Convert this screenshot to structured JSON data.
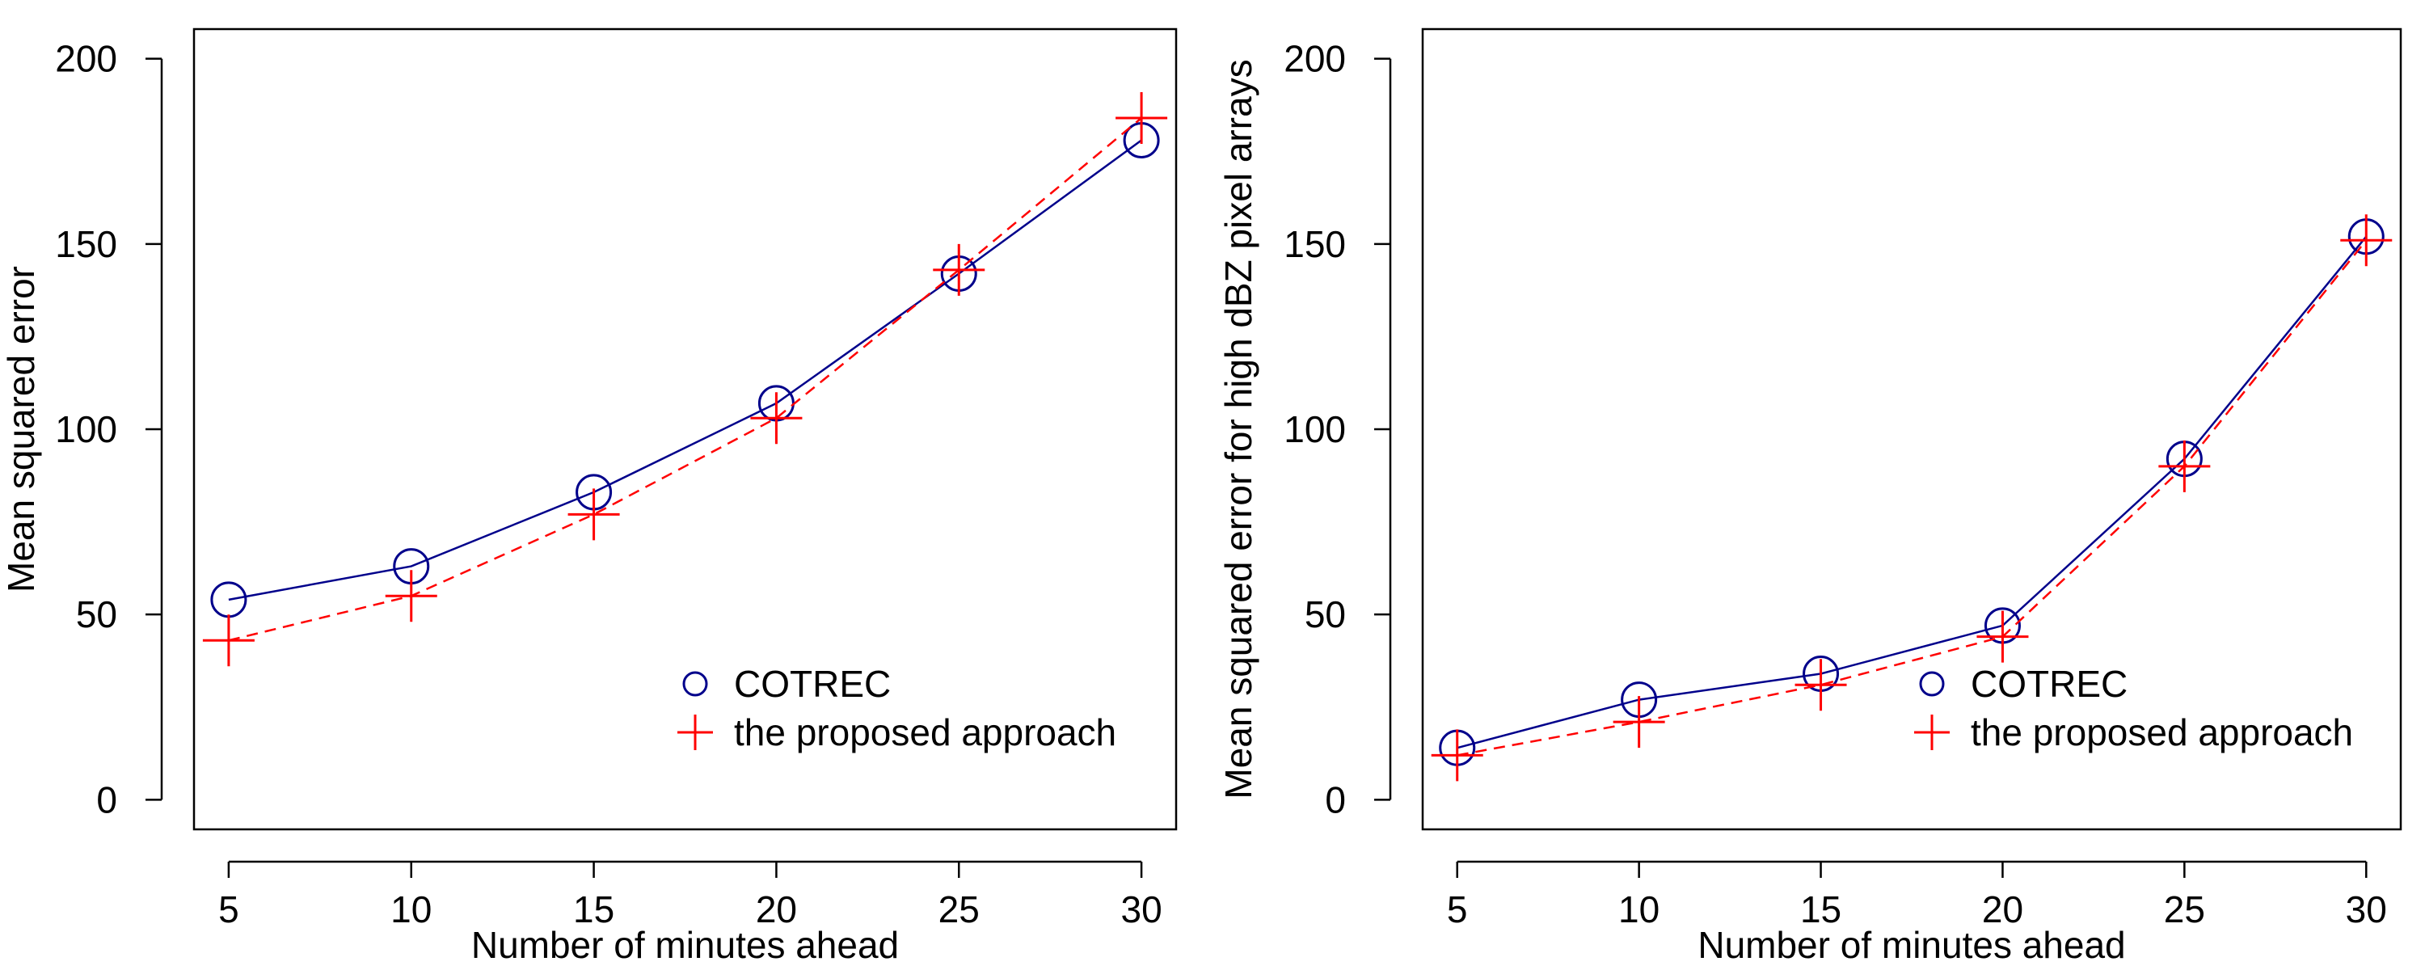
{
  "colors": {
    "cotrec": "#00008B",
    "proposed": "#FF0000",
    "axis": "#000000",
    "background": "#FFFFFF"
  },
  "chart_data": [
    {
      "type": "line",
      "title": "",
      "xlabel": "Number of minutes ahead",
      "ylabel": "Mean squared error",
      "xlim": [
        5,
        30
      ],
      "ylim": [
        0,
        200
      ],
      "x": [
        5,
        10,
        15,
        20,
        25,
        30
      ],
      "xticks": [
        "5",
        "10",
        "15",
        "20",
        "25",
        "30"
      ],
      "yticks": [
        "0",
        "50",
        "100",
        "150",
        "200"
      ],
      "grid": false,
      "legend_position": "bottom-right",
      "series": [
        {
          "name": "COTREC",
          "marker": "circle",
          "line": "solid",
          "values": [
            54,
            63,
            83,
            107,
            142,
            178
          ]
        },
        {
          "name": "the proposed approach",
          "marker": "plus",
          "line": "dashed",
          "values": [
            43,
            55,
            77,
            103,
            143,
            184
          ]
        }
      ]
    },
    {
      "type": "line",
      "title": "",
      "xlabel": "Number of minutes ahead",
      "ylabel": "Mean squared error for high dBZ pixel arrays",
      "xlim": [
        5,
        30
      ],
      "ylim": [
        0,
        200
      ],
      "x": [
        5,
        10,
        15,
        20,
        25,
        30
      ],
      "xticks": [
        "5",
        "10",
        "15",
        "20",
        "25",
        "30"
      ],
      "yticks": [
        "0",
        "50",
        "100",
        "150",
        "200"
      ],
      "grid": false,
      "legend_position": "bottom-right",
      "series": [
        {
          "name": "COTREC",
          "marker": "circle",
          "line": "solid",
          "values": [
            14,
            27,
            34,
            47,
            92,
            152
          ]
        },
        {
          "name": "the proposed approach",
          "marker": "plus",
          "line": "dashed",
          "values": [
            12,
            21,
            31,
            44,
            90,
            151
          ]
        }
      ]
    }
  ]
}
